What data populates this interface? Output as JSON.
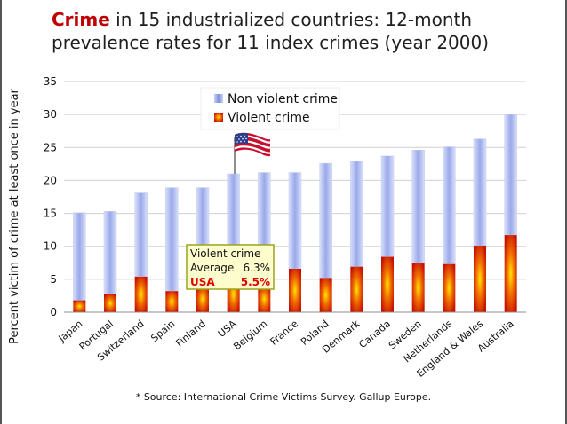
{
  "title": {
    "keyword": "Crime",
    "rest": " in 15 industrialized countries: 12-month prevalence rates for 11 index crimes (year 2000)"
  },
  "colors": {
    "title_keyword": "#c00000",
    "nonviolent_main": "#aab6f0",
    "violent_main": "#e22000",
    "violent_glow": "#ffe000"
  },
  "icons": {
    "flag": "usa-flag-icon"
  },
  "chart_data": {
    "type": "bar",
    "stacked": true,
    "ylabel": "Percent victim of crime at least once in year",
    "xlabel": "",
    "ylim": [
      0,
      35
    ],
    "yticks": [
      0,
      5,
      10,
      15,
      20,
      25,
      30,
      35
    ],
    "grid": true,
    "legend_position": "top-center",
    "categories": [
      "Japan",
      "Portugal",
      "Switzerland",
      "Spain",
      "Finland",
      "USA",
      "Belgium",
      "France",
      "Poland",
      "Denmark",
      "Canada",
      "Sweden",
      "Netherlands",
      "England & Wales",
      "Australia"
    ],
    "series": [
      {
        "name": "Violent crime",
        "values": [
          1.8,
          2.7,
          5.4,
          3.2,
          4.0,
          5.5,
          4.0,
          6.6,
          5.2,
          6.9,
          8.4,
          7.4,
          7.3,
          10.1,
          11.7
        ]
      },
      {
        "name": "Non violent crime",
        "values": [
          13.3,
          12.6,
          12.7,
          15.7,
          14.9,
          15.5,
          17.2,
          14.6,
          17.4,
          16.0,
          15.3,
          17.2,
          17.8,
          16.2,
          18.3
        ]
      }
    ],
    "annotation": {
      "title": "Violent crime",
      "rows": [
        {
          "label": "Average",
          "value": "6.3%"
        },
        {
          "label": "USA",
          "value": "5.5%"
        }
      ]
    }
  },
  "source": "* Source: International Crime Victims Survey. Gallup Europe."
}
